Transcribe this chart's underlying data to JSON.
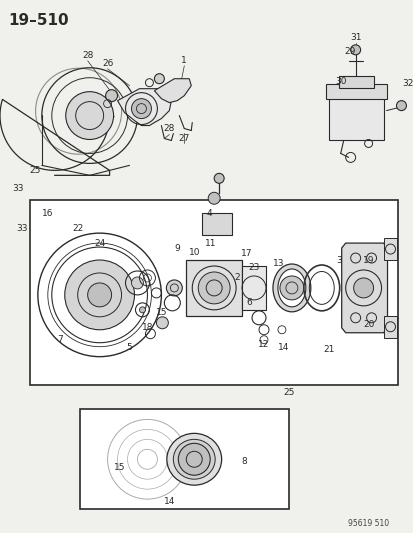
{
  "title": "19–510",
  "bg_color": "#f0f0ec",
  "line_color": "#2a2a2a",
  "watermark": "95619 510",
  "fig_width": 4.14,
  "fig_height": 5.33,
  "dpi": 100
}
